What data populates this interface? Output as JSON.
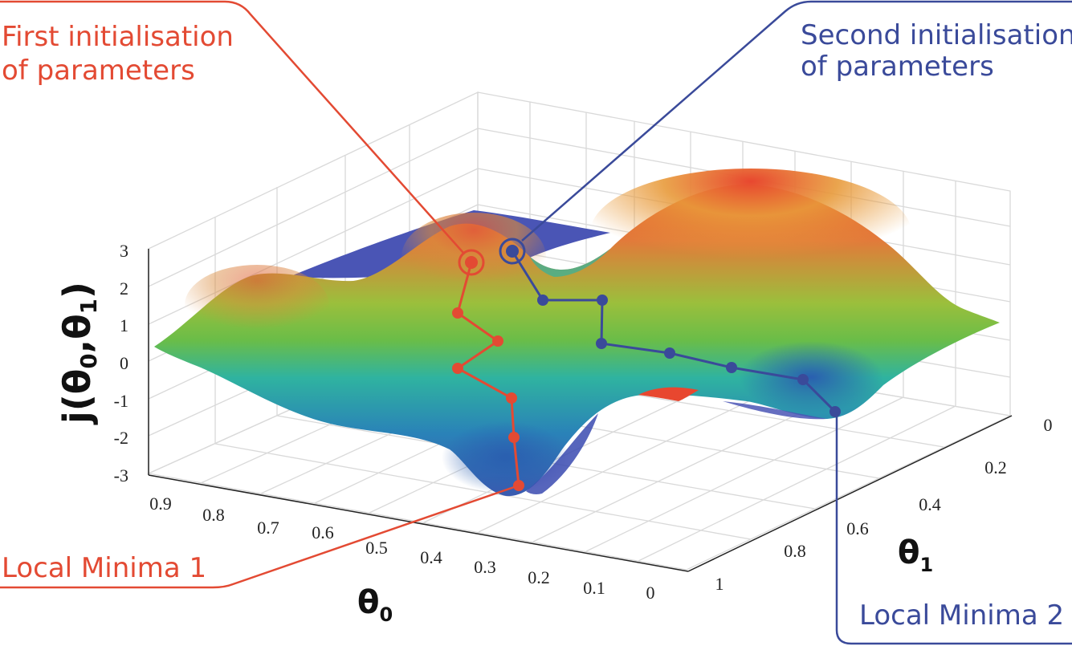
{
  "annotations": {
    "first_init": [
      "First initialisation",
      "of parameters"
    ],
    "second_init": [
      "Second initialisation",
      "of parameters"
    ],
    "local_min_1": "Local Minima 1",
    "local_min_2": "Local Minima 2"
  },
  "axes": {
    "z_label": {
      "main": "j(θ",
      "s0": "0",
      "mid": ",θ",
      "s1": "1",
      "end": ")"
    },
    "theta0_label": {
      "main": "θ",
      "sub": "0"
    },
    "theta1_label": {
      "main": "θ",
      "sub": "1"
    },
    "z_ticks": [
      "3",
      "2",
      "1",
      "0",
      "-1",
      "-2",
      "-3"
    ],
    "theta0_ticks": [
      "0.9",
      "0.8",
      "0.7",
      "0.6",
      "0.5",
      "0.4",
      "0.3",
      "0.2",
      "0.1",
      "0"
    ],
    "theta1_ticks": [
      "0",
      "0.2",
      "0.4",
      "0.6",
      "0.8",
      "1"
    ]
  },
  "colors": {
    "red_path": "#e34a33",
    "blue_path": "#3a4a9a",
    "surface_high": "#e8472f",
    "surface_mid": "#7cbf3a",
    "surface_low": "#2a6db3",
    "surface_deep": "#4a55b5"
  }
}
